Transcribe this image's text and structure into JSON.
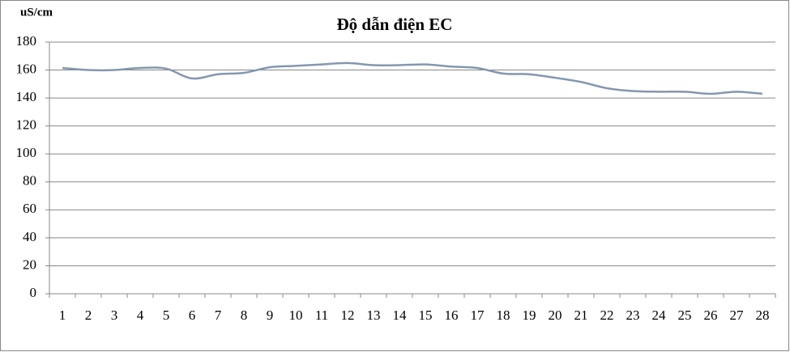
{
  "chart_data": {
    "type": "line",
    "title": "Độ dẫn  điện EC",
    "y_label": "uS/cm",
    "categories": [
      "1",
      "2",
      "3",
      "4",
      "5",
      "6",
      "7",
      "8",
      "9",
      "10",
      "11",
      "12",
      "13",
      "14",
      "15",
      "16",
      "17",
      "18",
      "19",
      "20",
      "21",
      "22",
      "23",
      "24",
      "25",
      "26",
      "27",
      "28"
    ],
    "series": [
      {
        "name": "EC",
        "color": "#8497b0",
        "values": [
          161.5,
          160,
          160,
          161.5,
          161,
          154,
          157,
          158,
          162,
          163,
          164,
          165,
          163.5,
          163.5,
          164,
          162.5,
          161.5,
          157.5,
          157,
          154.5,
          151.5,
          147,
          145,
          144.5,
          144.5,
          143,
          144.5,
          143
        ]
      }
    ],
    "ylim": [
      0,
      180
    ],
    "yticks": [
      0,
      20,
      40,
      60,
      80,
      100,
      120,
      140,
      160,
      180
    ],
    "grid": true
  }
}
